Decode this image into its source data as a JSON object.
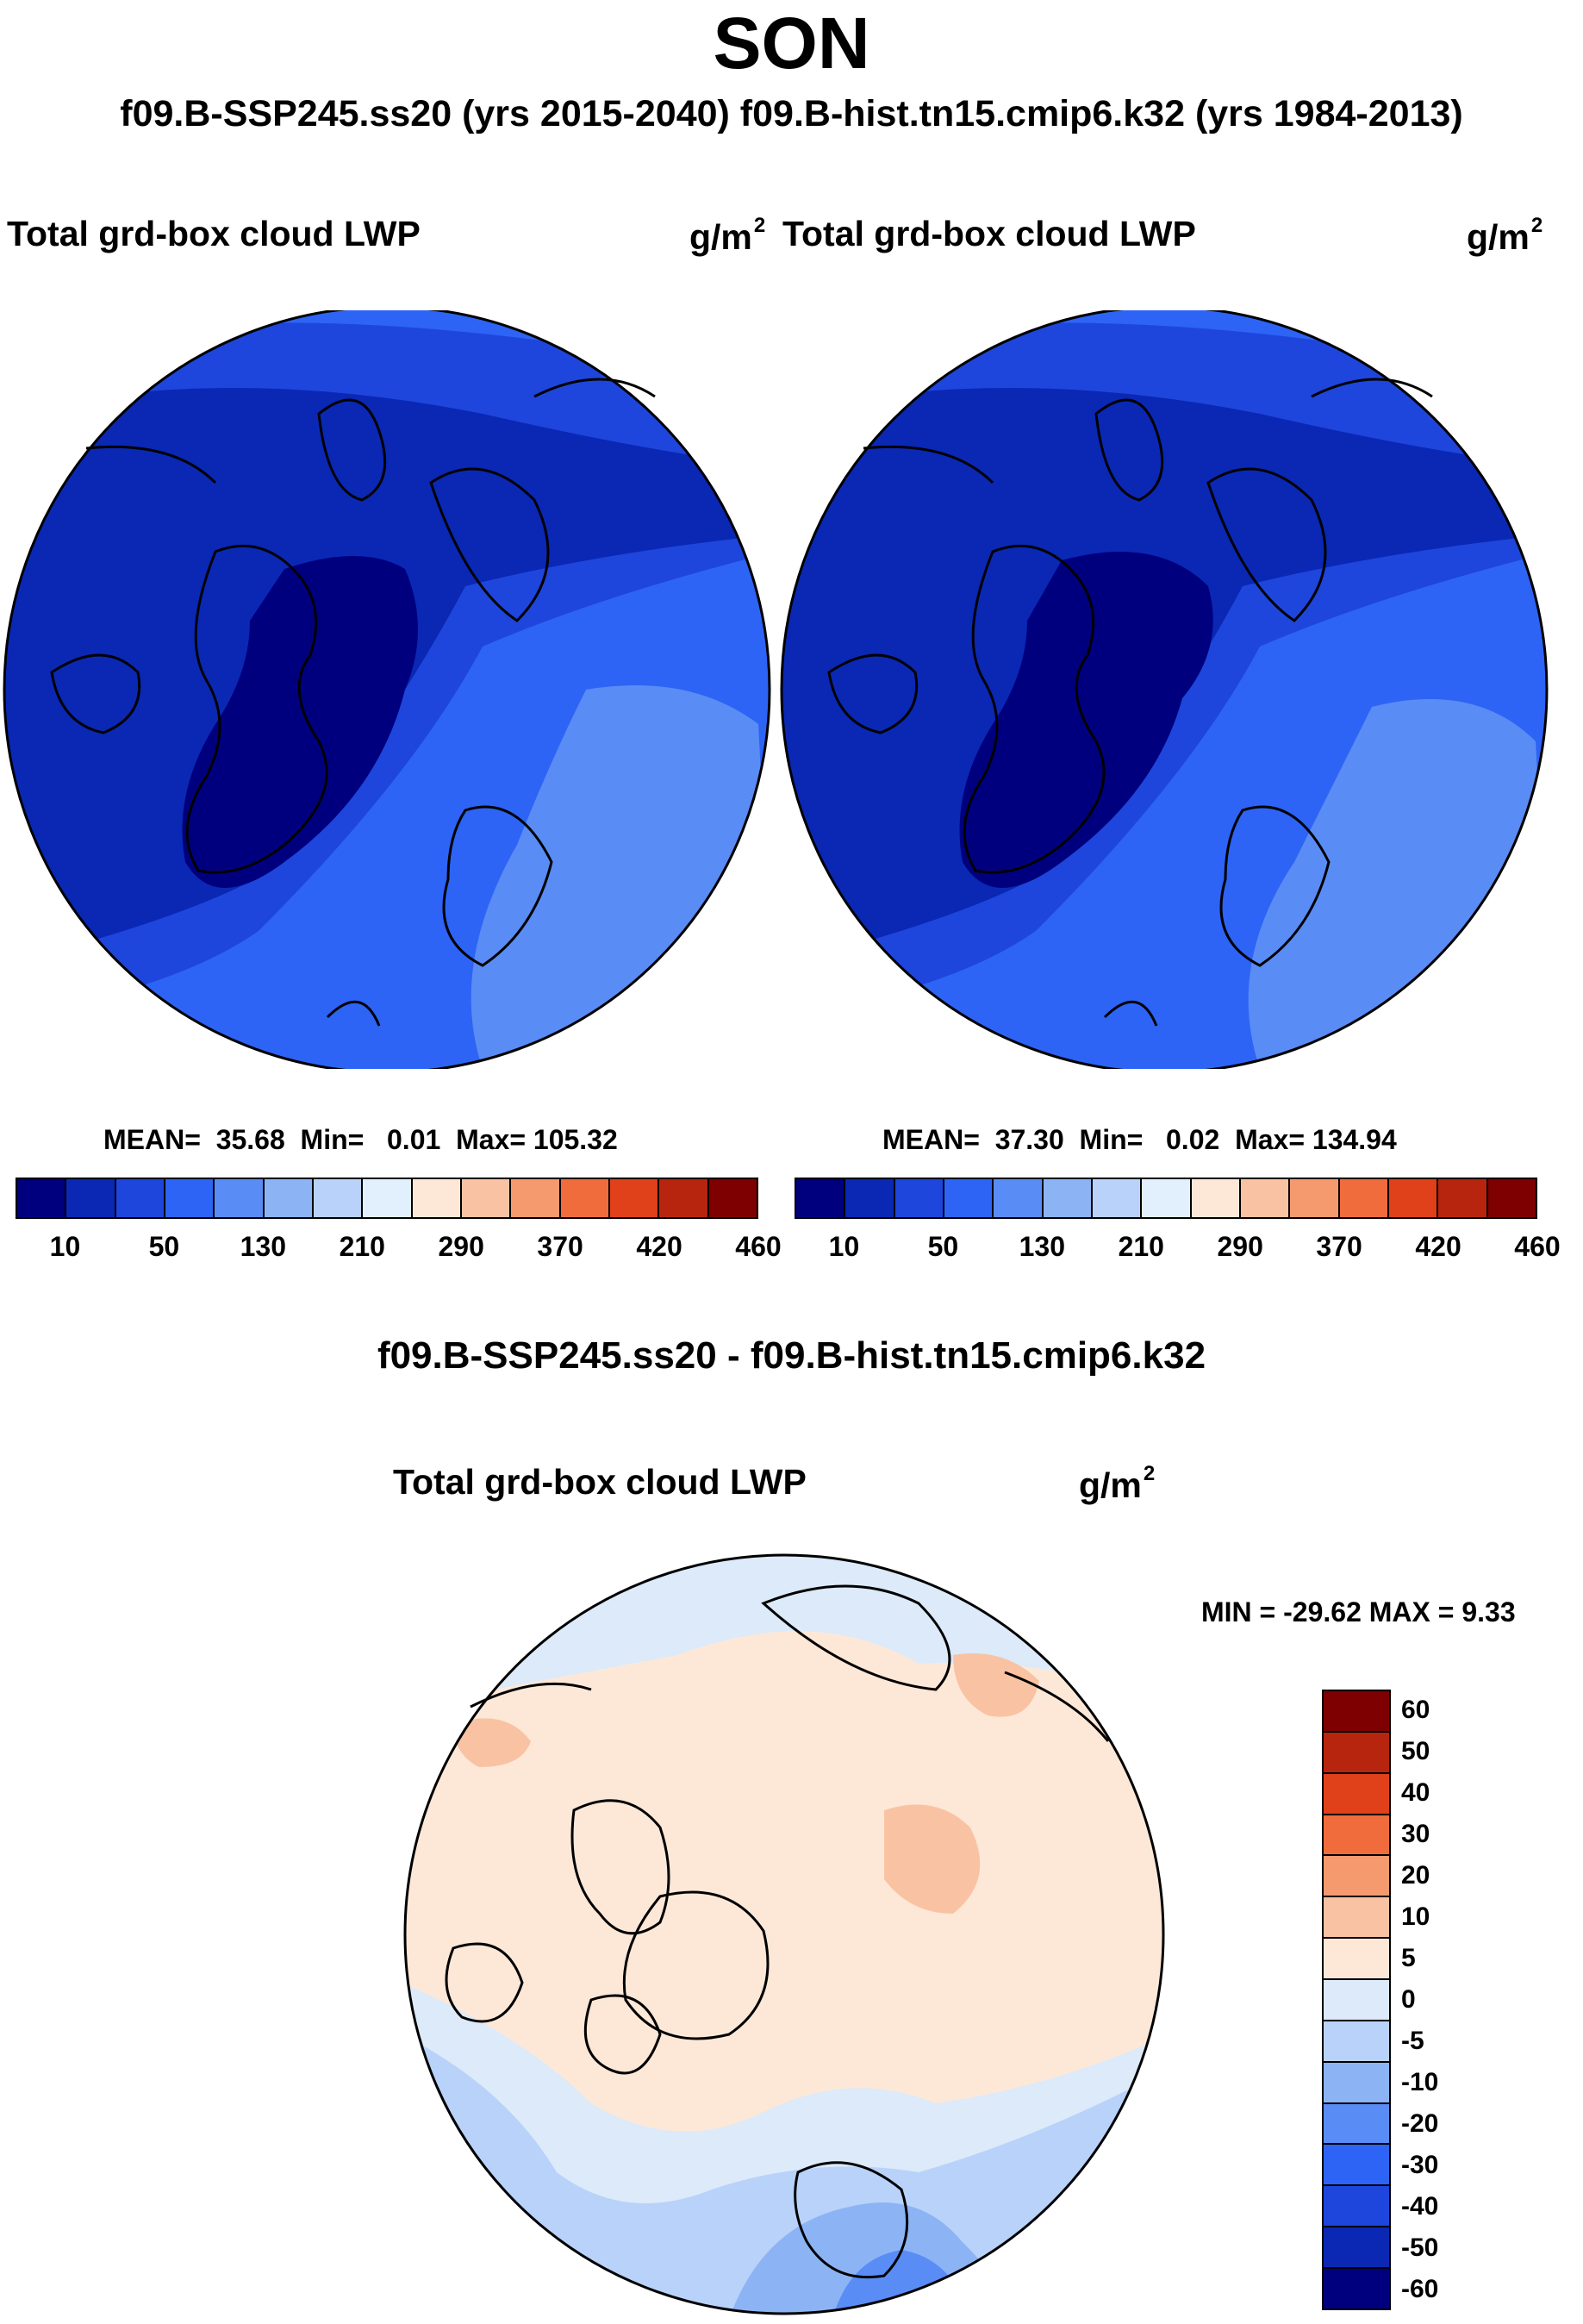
{
  "header": {
    "season": "SON",
    "runs": "f09.B-SSP245.ss20 (yrs 2015-2040)  f09.B-hist.tn15.cmip6.k32 (yrs 1984-2013)"
  },
  "left_panel": {
    "title": "Total grd-box cloud LWP",
    "units": "g/m",
    "units_exp": "2",
    "mean_label": "MEAN=",
    "mean": "35.68",
    "min_label": "Min=",
    "min": "0.01",
    "max_label": "Max=",
    "max": "105.32"
  },
  "right_panel": {
    "title": "Total grd-box cloud LWP",
    "units": "g/m",
    "units_exp": "2",
    "mean_label": "MEAN=",
    "mean": "37.30",
    "min_label": "Min=",
    "min": "0.02",
    "max_label": "Max=",
    "max": "134.94"
  },
  "colorbar_abs": {
    "colors": [
      "#00007f",
      "#0a28b4",
      "#1e46dc",
      "#2d64f5",
      "#5a8cf5",
      "#8cb4f5",
      "#b9d2fa",
      "#e1f0fc",
      "#fde8d8",
      "#f9c3a3",
      "#f59a6e",
      "#f06c3c",
      "#e0401a",
      "#b8250f",
      "#7f0000"
    ],
    "labels": [
      "10",
      "50",
      "130",
      "210",
      "290",
      "370",
      "420",
      "460"
    ]
  },
  "diff": {
    "title": "f09.B-SSP245.ss20 - f09.B-hist.tn15.cmip6.k32",
    "panel_title": "Total grd-box cloud LWP",
    "units": "g/m",
    "units_exp": "2",
    "minmax": "MIN = -29.62 MAX =   9.33"
  },
  "colorbar_diff": {
    "colors_top_to_bottom": [
      "#7f0000",
      "#b8250f",
      "#e0401a",
      "#f06c3c",
      "#f59a6e",
      "#f9c3a3",
      "#fde8d8",
      "#dceaf9",
      "#b9d2fa",
      "#8cb4f5",
      "#5a8cf5",
      "#2d64f5",
      "#1e46dc",
      "#0a28b4",
      "#00007f"
    ],
    "labels_top_to_bottom": [
      "60",
      "50",
      "40",
      "30",
      "20",
      "10",
      "5",
      "0",
      "-5",
      "-10",
      "-20",
      "-30",
      "-40",
      "-50",
      "-60"
    ]
  },
  "map_colors": {
    "abs_outer": "#2d64f5",
    "abs_mid": "#1e46dc",
    "abs_inner": "#0a28b4",
    "abs_core": "#00007f",
    "abs_light": "#5a8cf5",
    "diff_base": "#fde8d8",
    "diff_pos": "#f9c3a3",
    "diff_neg1": "#dceaf9",
    "diff_neg2": "#b9d2fa",
    "diff_neg3": "#8cb4f5",
    "diff_neg4": "#5a8cf5"
  }
}
